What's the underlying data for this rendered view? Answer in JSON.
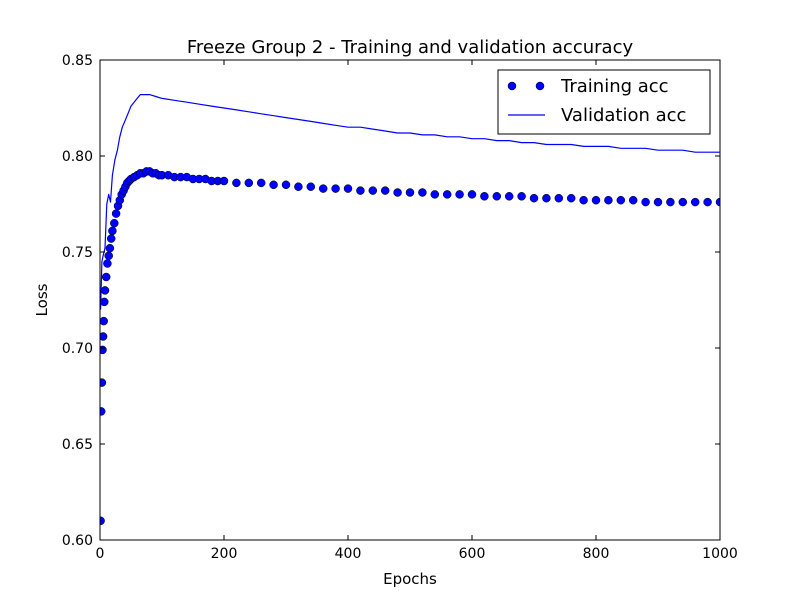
{
  "chart_data": {
    "type": "line",
    "title": "Freeze Group 2 - Training and validation accuracy",
    "xlabel": "Epochs",
    "ylabel": "Loss",
    "xlim": [
      0,
      1000
    ],
    "ylim": [
      0.6,
      0.85
    ],
    "x_ticks": [
      0,
      200,
      400,
      600,
      800,
      1000
    ],
    "x_tick_labels": [
      "0",
      "200",
      "400",
      "600",
      "800",
      "1000"
    ],
    "y_ticks": [
      0.6,
      0.65,
      0.7,
      0.75,
      0.8,
      0.85
    ],
    "y_tick_labels": [
      "0.60",
      "0.65",
      "0.70",
      "0.75",
      "0.80",
      "0.85"
    ],
    "grid": false,
    "legend_position": "top-right",
    "series": [
      {
        "name": "Training acc",
        "style": "markers",
        "color": "#0000ff",
        "x": [
          1,
          2,
          3,
          4,
          5,
          6,
          7,
          8,
          10,
          12,
          14,
          16,
          18,
          20,
          23,
          26,
          29,
          32,
          35,
          38,
          41,
          44,
          47,
          50,
          55,
          60,
          65,
          70,
          75,
          80,
          85,
          90,
          95,
          100,
          110,
          120,
          130,
          140,
          150,
          160,
          170,
          180,
          190,
          200,
          220,
          240,
          260,
          280,
          300,
          320,
          340,
          360,
          380,
          400,
          420,
          440,
          460,
          480,
          500,
          520,
          540,
          560,
          580,
          600,
          620,
          640,
          660,
          680,
          700,
          720,
          740,
          760,
          780,
          800,
          820,
          840,
          860,
          880,
          900,
          920,
          940,
          960,
          980,
          1000
        ],
        "y": [
          0.61,
          0.667,
          0.682,
          0.699,
          0.706,
          0.714,
          0.724,
          0.73,
          0.737,
          0.744,
          0.748,
          0.752,
          0.757,
          0.761,
          0.765,
          0.77,
          0.774,
          0.777,
          0.78,
          0.782,
          0.784,
          0.786,
          0.787,
          0.788,
          0.789,
          0.79,
          0.791,
          0.791,
          0.792,
          0.792,
          0.791,
          0.791,
          0.79,
          0.79,
          0.79,
          0.789,
          0.789,
          0.789,
          0.788,
          0.788,
          0.788,
          0.787,
          0.787,
          0.787,
          0.786,
          0.786,
          0.786,
          0.785,
          0.785,
          0.784,
          0.784,
          0.783,
          0.783,
          0.783,
          0.782,
          0.782,
          0.782,
          0.781,
          0.781,
          0.781,
          0.78,
          0.78,
          0.78,
          0.78,
          0.779,
          0.779,
          0.779,
          0.779,
          0.778,
          0.778,
          0.778,
          0.778,
          0.777,
          0.777,
          0.777,
          0.777,
          0.777,
          0.776,
          0.776,
          0.776,
          0.776,
          0.776,
          0.776,
          0.776
        ]
      },
      {
        "name": "Validation acc",
        "style": "line",
        "color": "#0000ff",
        "x": [
          1,
          3,
          5,
          8,
          11,
          14,
          17,
          20,
          24,
          28,
          32,
          36,
          40,
          45,
          50,
          55,
          60,
          65,
          70,
          80,
          90,
          100,
          120,
          140,
          160,
          180,
          200,
          220,
          240,
          260,
          280,
          300,
          320,
          340,
          360,
          380,
          400,
          420,
          440,
          460,
          480,
          500,
          520,
          540,
          560,
          580,
          600,
          620,
          640,
          660,
          680,
          700,
          720,
          740,
          760,
          780,
          800,
          820,
          840,
          860,
          880,
          900,
          920,
          940,
          960,
          980,
          1000
        ],
        "y": [
          0.72,
          0.745,
          0.748,
          0.752,
          0.775,
          0.78,
          0.776,
          0.79,
          0.798,
          0.803,
          0.81,
          0.815,
          0.818,
          0.822,
          0.826,
          0.828,
          0.83,
          0.832,
          0.832,
          0.832,
          0.831,
          0.83,
          0.829,
          0.828,
          0.827,
          0.826,
          0.825,
          0.824,
          0.823,
          0.822,
          0.821,
          0.82,
          0.819,
          0.818,
          0.817,
          0.816,
          0.815,
          0.815,
          0.814,
          0.813,
          0.812,
          0.812,
          0.811,
          0.811,
          0.81,
          0.81,
          0.809,
          0.809,
          0.808,
          0.808,
          0.807,
          0.807,
          0.806,
          0.806,
          0.806,
          0.805,
          0.805,
          0.805,
          0.804,
          0.804,
          0.804,
          0.803,
          0.803,
          0.803,
          0.802,
          0.802,
          0.802
        ]
      }
    ]
  }
}
